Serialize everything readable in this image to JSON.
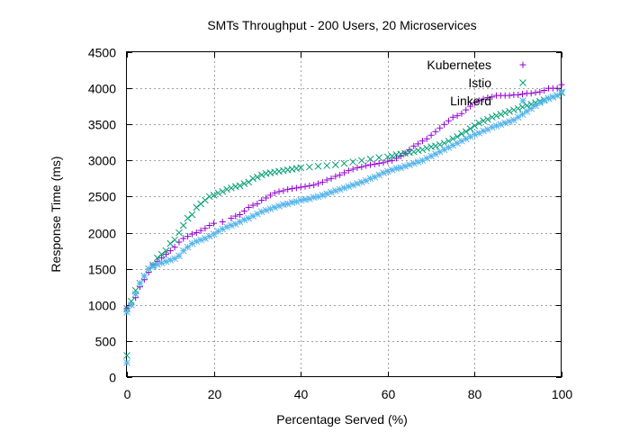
{
  "chart_data": {
    "type": "scatter",
    "title": "SMTs Throughput - 200 Users, 20 Microservices",
    "xlabel": "Percentage Served (%)",
    "ylabel": "Response Time (ms)",
    "xlim": [
      0,
      100
    ],
    "ylim": [
      0,
      4500
    ],
    "xticks": [
      0,
      20,
      40,
      60,
      80,
      100
    ],
    "yticks": [
      0,
      500,
      1000,
      1500,
      2000,
      2500,
      3000,
      3500,
      4000,
      4500
    ],
    "grid": true,
    "legend_position": "top-right",
    "series": [
      {
        "name": "Kubernetes",
        "color": "#9400d3",
        "marker": "plus",
        "x": [
          0,
          0,
          1,
          2,
          3,
          4,
          5,
          6,
          7,
          8,
          9,
          10,
          11,
          12,
          13,
          14,
          15,
          16,
          17,
          18,
          19,
          20,
          22,
          24,
          25,
          26,
          27,
          28,
          29,
          30,
          31,
          32,
          33,
          34,
          35,
          36,
          37,
          38,
          39,
          40,
          41,
          42,
          43,
          44,
          45,
          46,
          47,
          48,
          49,
          50,
          51,
          52,
          53,
          54,
          55,
          56,
          57,
          58,
          59,
          60,
          61,
          62,
          63,
          64,
          65,
          66,
          67,
          68,
          69,
          70,
          71,
          72,
          73,
          74,
          75,
          76,
          77,
          78,
          79,
          80,
          81,
          82,
          83,
          84,
          85,
          86,
          87,
          88,
          89,
          90,
          91,
          92,
          93,
          94,
          95,
          96,
          97,
          98,
          99,
          100
        ],
        "y": [
          200,
          950,
          1000,
          1100,
          1250,
          1350,
          1450,
          1550,
          1600,
          1650,
          1700,
          1750,
          1800,
          1870,
          1920,
          1950,
          1980,
          2000,
          2030,
          2060,
          2100,
          2130,
          2150,
          2200,
          2230,
          2250,
          2300,
          2350,
          2380,
          2400,
          2450,
          2480,
          2520,
          2550,
          2570,
          2580,
          2600,
          2610,
          2620,
          2630,
          2640,
          2650,
          2660,
          2680,
          2700,
          2730,
          2750,
          2780,
          2800,
          2830,
          2860,
          2880,
          2900,
          2910,
          2930,
          2940,
          2950,
          2960,
          2970,
          2990,
          3000,
          3030,
          3060,
          3100,
          3150,
          3200,
          3230,
          3270,
          3300,
          3350,
          3400,
          3450,
          3500,
          3550,
          3600,
          3620,
          3650,
          3700,
          3750,
          3800,
          3830,
          3850,
          3870,
          3880,
          3900,
          3900,
          3900,
          3900,
          3910,
          3910,
          3920,
          3930,
          3930,
          3940,
          3950,
          3970,
          4000,
          4000,
          4000,
          4050
        ]
      },
      {
        "name": "Istio",
        "color": "#009e73",
        "marker": "cross",
        "x": [
          0,
          0,
          1,
          2,
          3,
          4,
          5,
          6,
          7,
          8,
          9,
          10,
          11,
          12,
          13,
          14,
          15,
          16,
          17,
          18,
          19,
          20,
          21,
          22,
          23,
          24,
          25,
          26,
          27,
          28,
          29,
          30,
          31,
          32,
          33,
          34,
          35,
          36,
          37,
          38,
          39,
          40,
          42,
          44,
          46,
          48,
          50,
          52,
          54,
          56,
          58,
          60,
          61,
          62,
          63,
          64,
          65,
          66,
          67,
          68,
          69,
          70,
          71,
          72,
          73,
          74,
          75,
          76,
          77,
          78,
          79,
          80,
          81,
          82,
          83,
          84,
          85,
          86,
          87,
          88,
          89,
          90,
          91,
          92,
          93,
          94,
          95,
          96,
          97,
          98,
          99,
          100
        ],
        "y": [
          300,
          950,
          1050,
          1200,
          1300,
          1400,
          1500,
          1550,
          1650,
          1700,
          1750,
          1850,
          1900,
          2000,
          2100,
          2200,
          2250,
          2350,
          2400,
          2450,
          2500,
          2520,
          2550,
          2570,
          2600,
          2620,
          2640,
          2650,
          2680,
          2700,
          2750,
          2770,
          2800,
          2820,
          2830,
          2840,
          2850,
          2860,
          2870,
          2880,
          2890,
          2900,
          2910,
          2920,
          2930,
          2940,
          2960,
          2980,
          3000,
          3020,
          3040,
          3050,
          3060,
          3080,
          3090,
          3100,
          3110,
          3120,
          3140,
          3150,
          3170,
          3190,
          3200,
          3220,
          3240,
          3270,
          3300,
          3330,
          3370,
          3400,
          3440,
          3480,
          3520,
          3550,
          3570,
          3600,
          3620,
          3640,
          3660,
          3680,
          3700,
          3720,
          3740,
          3760,
          3780,
          3800,
          3820,
          3840,
          3860,
          3880,
          3900,
          3940
        ]
      },
      {
        "name": "Linkerd",
        "color": "#56b4e9",
        "marker": "star",
        "x": [
          0,
          0,
          1,
          2,
          3,
          4,
          5,
          6,
          7,
          8,
          9,
          10,
          11,
          12,
          13,
          14,
          15,
          16,
          17,
          18,
          19,
          20,
          21,
          22,
          23,
          24,
          25,
          26,
          27,
          28,
          29,
          30,
          31,
          32,
          33,
          34,
          35,
          36,
          37,
          38,
          39,
          40,
          41,
          42,
          43,
          44,
          45,
          46,
          47,
          48,
          49,
          50,
          51,
          52,
          53,
          54,
          55,
          56,
          57,
          58,
          59,
          60,
          61,
          62,
          63,
          64,
          65,
          66,
          67,
          68,
          69,
          70,
          71,
          72,
          73,
          74,
          75,
          76,
          77,
          78,
          79,
          80,
          81,
          82,
          83,
          84,
          85,
          86,
          87,
          88,
          89,
          90,
          91,
          92,
          93,
          94,
          95,
          96,
          97,
          98,
          99,
          100
        ],
        "y": [
          200,
          900,
          1000,
          1150,
          1300,
          1400,
          1500,
          1530,
          1560,
          1580,
          1600,
          1620,
          1640,
          1680,
          1750,
          1800,
          1850,
          1880,
          1900,
          1920,
          1950,
          1980,
          2020,
          2050,
          2080,
          2100,
          2120,
          2150,
          2180,
          2200,
          2230,
          2260,
          2290,
          2310,
          2330,
          2350,
          2370,
          2390,
          2400,
          2420,
          2430,
          2450,
          2460,
          2470,
          2490,
          2500,
          2520,
          2540,
          2560,
          2580,
          2600,
          2620,
          2640,
          2660,
          2680,
          2700,
          2720,
          2750,
          2770,
          2800,
          2830,
          2850,
          2870,
          2890,
          2900,
          2920,
          2940,
          2960,
          2980,
          3000,
          3030,
          3060,
          3090,
          3120,
          3150,
          3180,
          3210,
          3240,
          3270,
          3300,
          3330,
          3360,
          3380,
          3410,
          3430,
          3460,
          3480,
          3500,
          3520,
          3540,
          3560,
          3600,
          3640,
          3680,
          3720,
          3760,
          3800,
          3830,
          3860,
          3880,
          3900,
          3950
        ]
      }
    ]
  }
}
